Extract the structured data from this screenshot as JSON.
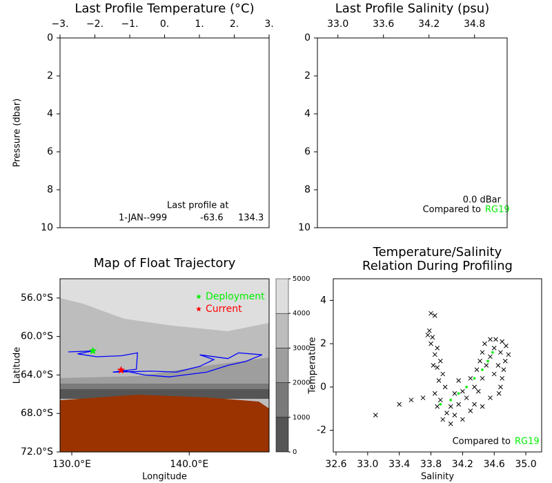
{
  "chart_data": [
    {
      "type": "line",
      "title": "Last Profile Temperature (°C)",
      "y_label": "Pressure (dbar)",
      "xlim": [
        -3,
        3
      ],
      "xticks": [
        {
          "value": -3,
          "label": "−3."
        },
        {
          "value": -2,
          "label": "−2."
        },
        {
          "value": -1,
          "label": "−1."
        },
        {
          "value": 0,
          "label": "0."
        },
        {
          "value": 1,
          "label": "1."
        },
        {
          "value": 2,
          "label": "2."
        },
        {
          "value": 3,
          "label": "3."
        }
      ],
      "ylim": [
        10,
        0
      ],
      "yticks": [
        0,
        2,
        4,
        6,
        8,
        10
      ],
      "x_axis_position": "top",
      "last_profile": {
        "label": "Last profile at",
        "date": "1-JAN--999",
        "lat": -63.6,
        "lon": 134.3
      }
    },
    {
      "type": "line",
      "title": "Last Profile Salinity (psu)",
      "xlim": [
        32.73,
        35.23
      ],
      "xticks": [
        {
          "value": 33,
          "label": "33.0"
        },
        33.6,
        34.2,
        34.8
      ],
      "ylim": [
        10,
        0
      ],
      "yticks": [
        0,
        2,
        4,
        6,
        8,
        10
      ],
      "x_axis_position": "top",
      "pressure_label": "0.0 dBar",
      "comparison_label": "Compared to",
      "comparison": "RG19",
      "comparison_color": "#00ee00"
    },
    {
      "type": "map",
      "title": "Map of Float Trajectory",
      "x_label": "Longitude",
      "y_label": "Latitude",
      "xlim": [
        129,
        146.8
      ],
      "xticks": [
        {
          "value": 130,
          "label": "130.0°E"
        },
        {
          "value": 140,
          "label": "140.0°E"
        }
      ],
      "ylim": [
        -72,
        -54
      ],
      "yticks": [
        {
          "value": -56,
          "label": "56.0°S"
        },
        {
          "value": -60,
          "label": "60.0°S"
        },
        {
          "value": -64,
          "label": "64.0°S"
        },
        {
          "value": -68,
          "label": "68.0°S"
        },
        {
          "value": -72,
          "label": "72.0°S"
        }
      ],
      "trajectory": {
        "color": "#0000ff",
        "x": [
          129.7,
          131.8,
          130.5,
          132.1,
          134.2,
          135.6,
          135.5,
          133.5,
          136.8,
          138.9,
          140.9,
          142.1,
          140.9,
          143.3,
          144.2,
          146.2,
          144.8,
          143.3,
          141.5,
          138.3,
          136.2,
          134.2
        ],
        "y": [
          -61.6,
          -61.5,
          -61.8,
          -62.1,
          -62.0,
          -61.7,
          -63.4,
          -63.7,
          -63.6,
          -63.7,
          -63.1,
          -62.4,
          -61.9,
          -62.3,
          -61.7,
          -61.9,
          -62.6,
          -63.0,
          -63.7,
          -64.2,
          -64.0,
          -63.5
        ]
      },
      "markers": [
        {
          "name": "Deployment",
          "x": 131.8,
          "y": -61.5,
          "color": "#00ee00"
        },
        {
          "name": "Current",
          "x": 134.2,
          "y": -63.5,
          "color": "#ff0000"
        }
      ],
      "colorbar": {
        "ticks": [
          0,
          1000,
          2000,
          3000,
          4000,
          5000
        ],
        "colors": [
          "#555555",
          "#7a7a7a",
          "#9e9e9e",
          "#bdbdbd",
          "#dedede"
        ]
      }
    },
    {
      "type": "scatter",
      "title": [
        "Temperature/Salinity",
        "Relation During Profiling"
      ],
      "x_label": "Salinity",
      "y_label": "Temperature",
      "xlim": [
        32.565,
        35.2
      ],
      "xticks": [
        32.6,
        {
          "value": 33,
          "label": "33.0"
        },
        33.4,
        33.8,
        34.2,
        34.6,
        {
          "value": 35,
          "label": "35.0"
        }
      ],
      "ylim": [
        -3,
        5
      ],
      "yticks": [
        -2,
        0,
        2,
        4
      ],
      "comparison_label": "Compared to",
      "series": [
        {
          "color": "#000000",
          "marker": "x",
          "x": [
            33.8,
            33.85,
            33.78,
            33.82,
            33.8,
            33.88,
            33.85,
            33.92,
            33.88,
            33.95,
            33.9,
            33.98,
            33.85,
            33.92,
            33.88,
            34.0,
            33.95,
            34.05,
            33.76,
            33.83,
            33.7,
            33.4,
            33.1,
            33.55,
            34.05,
            34.1,
            34.15,
            34.2,
            34.25,
            34.3,
            34.35,
            34.3,
            34.38,
            34.42,
            34.45,
            34.48,
            34.55,
            34.62,
            34.7,
            34.75,
            34.78,
            34.74,
            34.72,
            34.7,
            34.68,
            34.66,
            34.6,
            34.55,
            34.5,
            34.45,
            34.4,
            34.35,
            34.2,
            34.15,
            34.1,
            34.45,
            34.55,
            34.6,
            34.65,
            34.68
          ],
          "y": [
            3.4,
            3.3,
            2.6,
            2.3,
            2.0,
            1.8,
            1.5,
            1.2,
            0.9,
            0.6,
            0.3,
            0.0,
            -0.3,
            -0.6,
            -0.9,
            -1.2,
            -1.5,
            -1.7,
            2.4,
            1.0,
            -0.5,
            -0.8,
            -1.3,
            -0.6,
            -0.9,
            -1.3,
            -0.8,
            -1.5,
            -0.5,
            -1.1,
            0.0,
            0.4,
            0.8,
            1.2,
            1.6,
            2.0,
            2.2,
            2.2,
            2.1,
            1.9,
            1.5,
            1.2,
            0.8,
            0.4,
            0.0,
            -0.3,
            1.8,
            1.4,
            1.0,
            0.4,
            -0.2,
            -0.8,
            -0.2,
            0.3,
            -0.3,
            -0.9,
            -0.5,
            0.6,
            1.0,
            1.6
          ]
        },
        {
          "name": "RG19",
          "color": "#00ee00",
          "marker": "dot",
          "x": [
            33.92,
            34.05,
            34.15,
            34.25,
            34.35,
            34.45,
            34.52,
            34.58
          ],
          "y": [
            -0.8,
            -0.6,
            -0.3,
            0.0,
            0.4,
            0.8,
            1.2,
            1.6
          ]
        }
      ]
    }
  ]
}
